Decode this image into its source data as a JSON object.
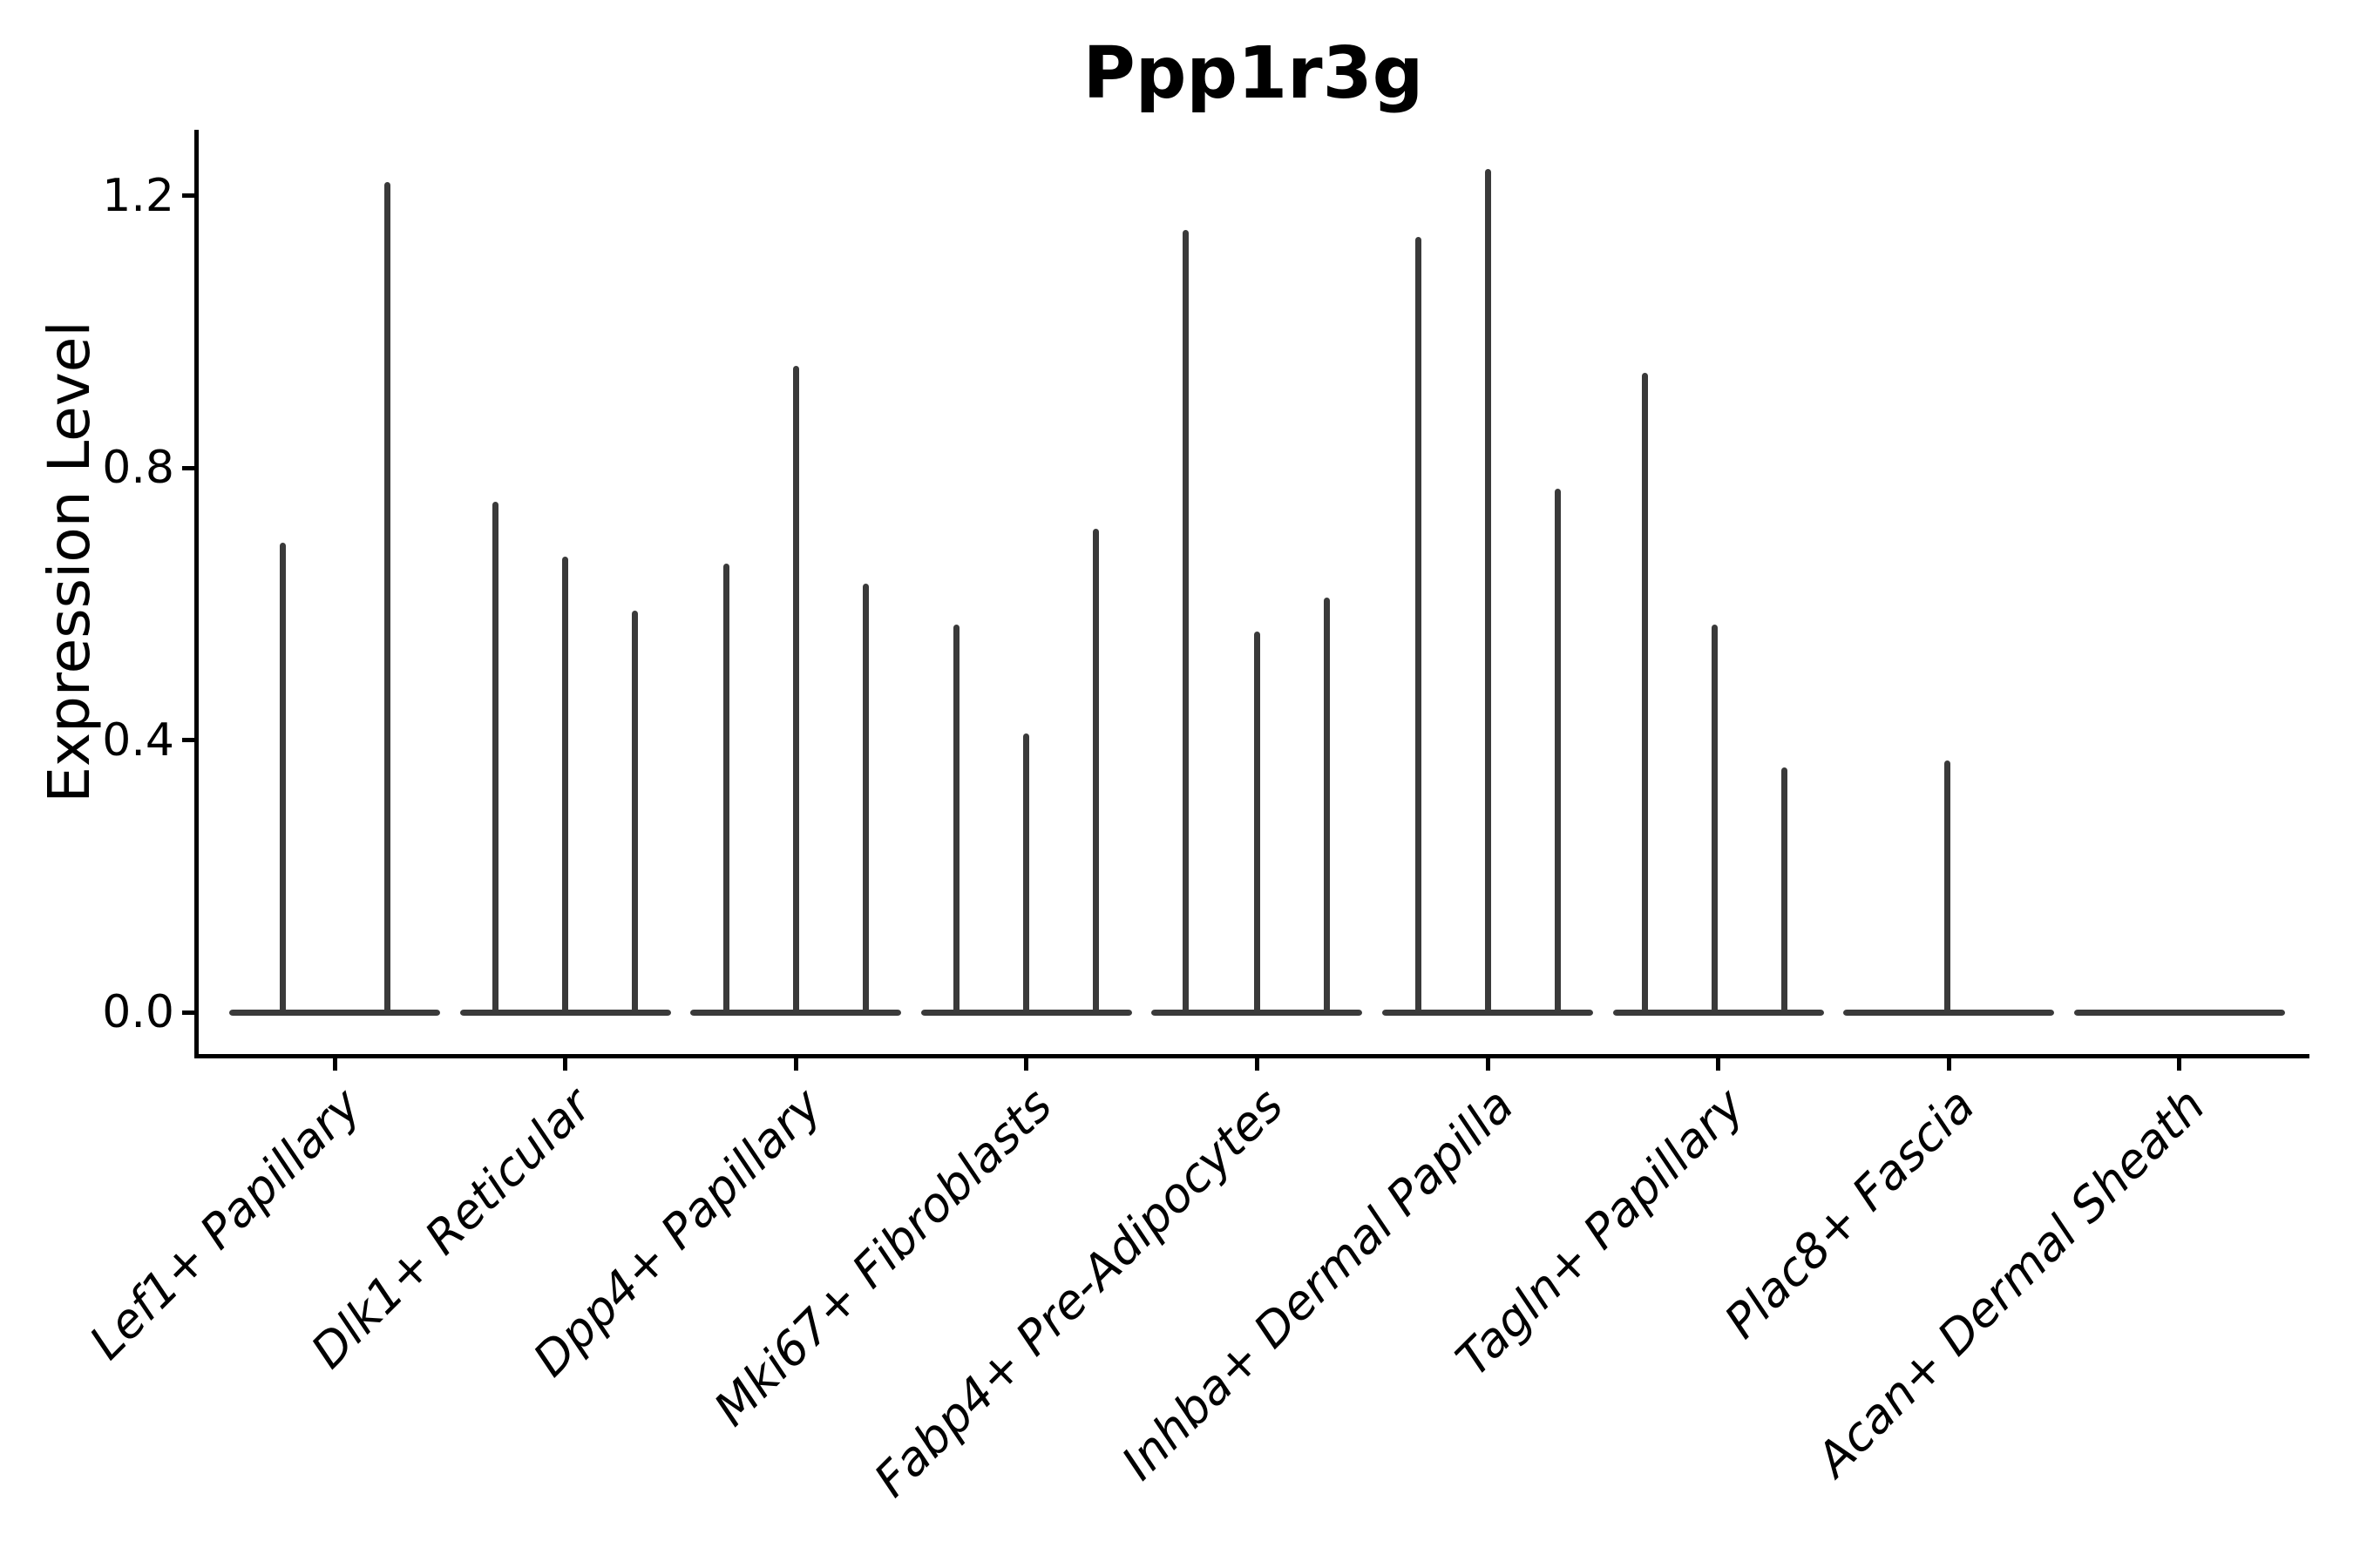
{
  "title": "Ppp1r3g",
  "colors": {
    "violin": "#3a3a3a",
    "axis": "#000000",
    "text": "#000000",
    "background": "#ffffff"
  },
  "chart_data": {
    "type": "violin",
    "title": "Ppp1r3g",
    "xlabel": "",
    "ylabel": "Expression Level",
    "ylim": [
      0,
      1.3
    ],
    "grid": false,
    "legend": "none",
    "yticks": [
      0.0,
      0.4,
      0.8,
      1.2
    ],
    "ytick_labels": [
      "0.0",
      "0.4",
      "0.8",
      "1.2"
    ],
    "categories": [
      "Lef1+ Papillary",
      "Dlk1+ Reticular",
      "Dpp4+ Papillary",
      "Mki67+ Fibroblasts",
      "Fabp4+ Pre-Adipocytes",
      "Inhba+ Dermal Papilla",
      "Tagln+ Papillary",
      "Plac8+ Fascia",
      "Acan+ Dermal Sheath"
    ],
    "series": [
      {
        "name": "Lef1+ Papillary",
        "baseline_value": 0.0,
        "spikes": [
          {
            "dx": -60,
            "value": 0.69
          },
          {
            "dx": 60,
            "value": 1.22
          }
        ]
      },
      {
        "name": "Dlk1+ Reticular",
        "baseline_value": 0.0,
        "spikes": [
          {
            "dx": -80,
            "value": 0.75
          },
          {
            "dx": 0,
            "value": 0.67
          },
          {
            "dx": 80,
            "value": 0.59
          }
        ]
      },
      {
        "name": "Dpp4+ Papillary",
        "baseline_value": 0.0,
        "spikes": [
          {
            "dx": -80,
            "value": 0.66
          },
          {
            "dx": 0,
            "value": 0.95
          },
          {
            "dx": 80,
            "value": 0.63
          }
        ]
      },
      {
        "name": "Mki67+ Fibroblasts",
        "baseline_value": 0.0,
        "spikes": [
          {
            "dx": -80,
            "value": 0.57
          },
          {
            "dx": 0,
            "value": 0.41
          },
          {
            "dx": 80,
            "value": 0.71
          }
        ]
      },
      {
        "name": "Fabp4+ Pre-Adipocytes",
        "baseline_value": 0.0,
        "spikes": [
          {
            "dx": -82,
            "value": 1.15
          },
          {
            "dx": 0,
            "value": 0.56
          },
          {
            "dx": 80,
            "value": 0.61
          }
        ]
      },
      {
        "name": "Inhba+ Dermal Papilla",
        "baseline_value": 0.0,
        "spikes": [
          {
            "dx": -80,
            "value": 1.14
          },
          {
            "dx": 0,
            "value": 1.24
          },
          {
            "dx": 80,
            "value": 0.77
          }
        ]
      },
      {
        "name": "Tagln+ Papillary",
        "baseline_value": 0.0,
        "spikes": [
          {
            "dx": -84,
            "value": 0.94
          },
          {
            "dx": -4,
            "value": 0.57
          },
          {
            "dx": 76,
            "value": 0.36
          }
        ]
      },
      {
        "name": "Plac8+ Fascia",
        "baseline_value": 0.0,
        "spikes": [
          {
            "dx": -2,
            "value": 0.37
          }
        ]
      },
      {
        "name": "Acan+ Dermal Sheath",
        "baseline_value": 0.0,
        "spikes": []
      }
    ]
  }
}
